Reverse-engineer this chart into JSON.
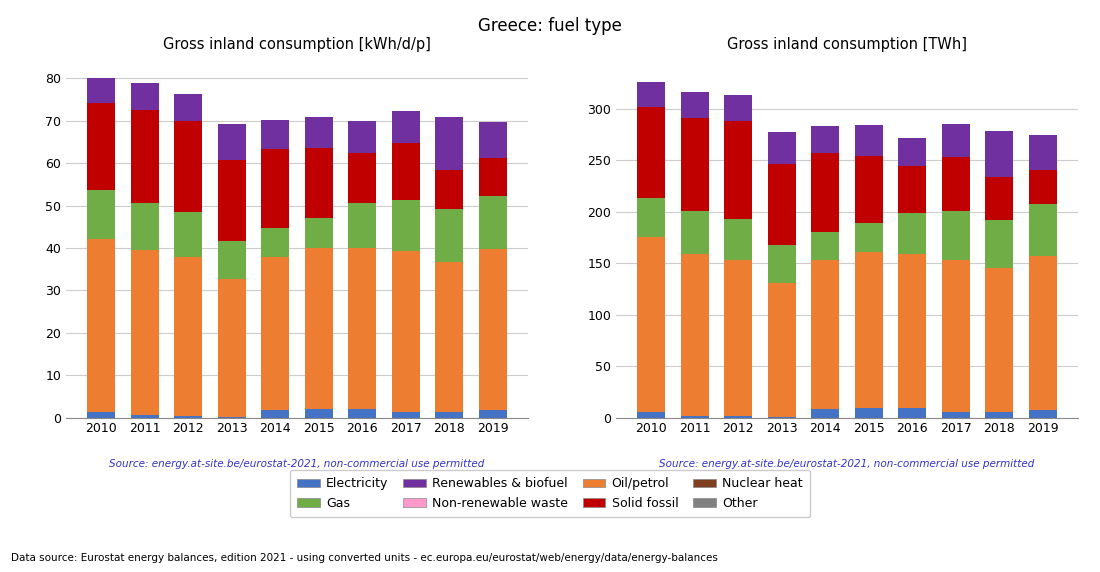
{
  "title": "Greece: fuel type",
  "years": [
    2010,
    2011,
    2012,
    2013,
    2014,
    2015,
    2016,
    2017,
    2018,
    2019
  ],
  "left_title": "Gross inland consumption [kWh/d/p]",
  "right_title": "Gross inland consumption [TWh]",
  "source_text": "Source: energy.at-site.be/eurostat-2021, non-commercial use permitted",
  "footer_text": "Data source: Eurostat energy balances, edition 2021 - using converted units - ec.europa.eu/eurostat/web/energy/data/energy-balances",
  "categories": [
    "Electricity",
    "Oil/petrol",
    "Gas",
    "Solid fossil",
    "Renewables & biofuel",
    "Non-renewable waste",
    "Nuclear heat",
    "Other"
  ],
  "colors": [
    "#4472c4",
    "#ed7d31",
    "#70ad47",
    "#c00000",
    "#7030a0",
    "#ff99cc",
    "#7f3f1f",
    "#808080"
  ],
  "kwhd_data": {
    "Electricity": [
      1.2,
      0.5,
      0.4,
      0.2,
      1.8,
      2.0,
      2.0,
      1.3,
      1.3,
      1.8
    ],
    "Oil/petrol": [
      41.0,
      39.0,
      37.5,
      32.5,
      36.0,
      38.0,
      38.0,
      38.0,
      35.5,
      38.0
    ],
    "Gas": [
      11.5,
      11.0,
      10.5,
      9.0,
      7.0,
      7.0,
      10.5,
      12.0,
      12.5,
      12.5
    ],
    "Solid fossil": [
      20.5,
      22.0,
      21.5,
      19.0,
      18.5,
      16.5,
      12.0,
      13.5,
      9.0,
      9.0
    ],
    "Renewables & biofuel": [
      6.0,
      6.5,
      6.5,
      8.5,
      7.0,
      7.5,
      7.5,
      7.5,
      12.5,
      8.5
    ],
    "Non-renewable waste": [
      0.0,
      0.0,
      0.0,
      0.0,
      0.0,
      0.0,
      0.0,
      0.0,
      0.0,
      0.0
    ],
    "Nuclear heat": [
      0.0,
      0.0,
      0.0,
      0.0,
      0.0,
      0.0,
      0.0,
      0.0,
      0.0,
      0.0
    ],
    "Other": [
      0.0,
      0.0,
      0.0,
      0.0,
      0.0,
      0.0,
      0.0,
      0.0,
      0.0,
      0.0
    ]
  },
  "twh_data": {
    "Electricity": [
      5.5,
      2.0,
      2.0,
      0.5,
      8.0,
      9.0,
      9.0,
      5.0,
      5.0,
      7.0
    ],
    "Oil/petrol": [
      170.0,
      157.0,
      151.0,
      130.0,
      145.0,
      152.0,
      150.0,
      148.0,
      140.0,
      150.0
    ],
    "Gas": [
      38.0,
      42.0,
      40.0,
      37.0,
      27.0,
      28.0,
      40.0,
      48.0,
      47.0,
      50.0
    ],
    "Solid fossil": [
      88.0,
      90.0,
      95.0,
      79.0,
      77.0,
      65.0,
      45.0,
      52.0,
      42.0,
      33.0
    ],
    "Renewables & biofuel": [
      24.0,
      25.0,
      25.0,
      31.0,
      26.0,
      30.0,
      28.0,
      32.0,
      44.0,
      34.0
    ],
    "Non-renewable waste": [
      0.0,
      0.0,
      0.0,
      0.0,
      0.0,
      0.0,
      0.0,
      0.0,
      0.0,
      0.0
    ],
    "Nuclear heat": [
      0.0,
      0.0,
      0.0,
      0.0,
      0.0,
      0.0,
      0.0,
      0.0,
      0.0,
      0.0
    ],
    "Other": [
      0.0,
      0.0,
      0.0,
      0.0,
      0.0,
      0.0,
      0.0,
      0.0,
      0.0,
      0.0
    ]
  },
  "left_ylim": [
    0,
    85
  ],
  "right_ylim": [
    0,
    350
  ],
  "left_yticks": [
    0,
    10,
    20,
    30,
    40,
    50,
    60,
    70,
    80
  ],
  "right_yticks": [
    0,
    50,
    100,
    150,
    200,
    250,
    300
  ],
  "bar_width": 0.65,
  "source_color": "#3333cc"
}
